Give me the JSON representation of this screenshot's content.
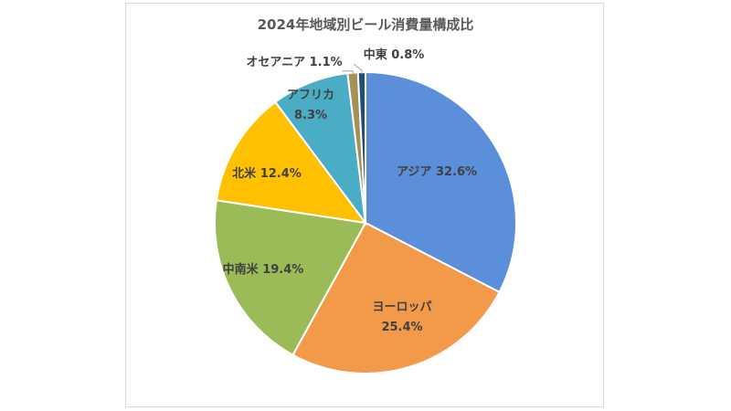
{
  "chart_data": {
    "type": "pie",
    "title": "2024年地域別ビール消費量構成比",
    "categories": [
      "アジア",
      "ヨーロッパ",
      "中南米",
      "北米",
      "アフリカ",
      "オセアニア",
      "中東"
    ],
    "values": [
      32.6,
      25.4,
      19.4,
      12.4,
      8.3,
      1.1,
      0.8
    ],
    "colors": [
      "#5b8fd9",
      "#f39a4a",
      "#9bbb59",
      "#ffc000",
      "#4bacc6",
      "#a39155",
      "#1f4e79"
    ],
    "labels": [
      [
        "アジア 32.6%"
      ],
      [
        "ヨーロッパ",
        "25.4%"
      ],
      [
        "中南米 19.4%"
      ],
      [
        "北米 12.4%"
      ],
      [
        "アフリカ",
        "8.3%"
      ],
      [
        "オセアニア 1.1%"
      ],
      [
        "中東 0.8%"
      ]
    ],
    "legend": "none"
  }
}
